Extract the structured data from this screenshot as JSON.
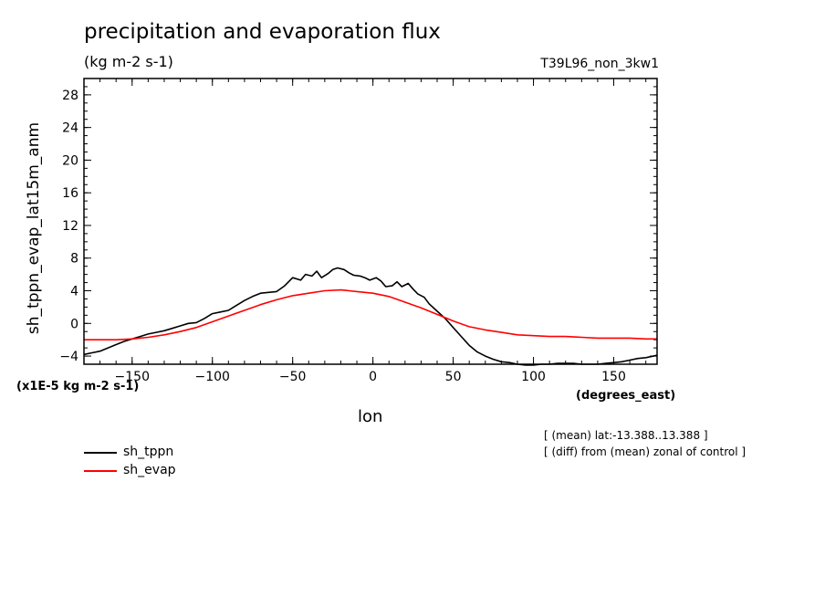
{
  "chart_data": {
    "type": "line",
    "title": "precipitation and evaporation flux",
    "units": "(kg m-2 s-1)",
    "run_label": "T39L96_non_3kw1",
    "xlabel": "lon",
    "xunits": "(degrees_east)",
    "ylabel": "sh_tppn_evap_lat15m_anm",
    "yunits": "(x1E-5 kg m-2 s-1)",
    "xlim": [
      -180,
      177
    ],
    "ylim": [
      -5,
      30
    ],
    "xticks": [
      -150,
      -100,
      -50,
      0,
      50,
      100,
      150
    ],
    "yticks": [
      -4,
      0,
      4,
      8,
      12,
      16,
      20,
      24,
      28
    ],
    "grid": false,
    "legend_position": "bottom-left",
    "notes": [
      "[ (mean) lat:-13.388..13.388 ]",
      "[ (diff) from (mean) zonal of control ]"
    ],
    "series": [
      {
        "name": "sh_tppn",
        "color": "#000000",
        "x": [
          -180,
          -175,
          -170,
          -165,
          -160,
          -155,
          -150,
          -145,
          -140,
          -135,
          -130,
          -125,
          -120,
          -115,
          -110,
          -105,
          -100,
          -95,
          -90,
          -85,
          -80,
          -75,
          -70,
          -65,
          -60,
          -55,
          -50,
          -45,
          -42,
          -38,
          -35,
          -32,
          -28,
          -25,
          -22,
          -18,
          -15,
          -12,
          -8,
          -5,
          -2,
          2,
          5,
          8,
          12,
          15,
          18,
          22,
          25,
          28,
          32,
          35,
          40,
          45,
          50,
          55,
          60,
          65,
          70,
          75,
          80,
          85,
          90,
          95,
          100,
          105,
          110,
          115,
          120,
          125,
          130,
          135,
          140,
          145,
          150,
          155,
          160,
          165,
          170,
          177
        ],
        "values": [
          -3.8,
          -3.6,
          -3.4,
          -3.0,
          -2.6,
          -2.2,
          -1.9,
          -1.6,
          -1.3,
          -1.1,
          -0.9,
          -0.6,
          -0.3,
          0.0,
          0.1,
          0.6,
          1.2,
          1.4,
          1.6,
          2.2,
          2.8,
          3.3,
          3.7,
          3.8,
          3.9,
          4.6,
          5.6,
          5.3,
          6.0,
          5.8,
          6.4,
          5.6,
          6.1,
          6.6,
          6.8,
          6.6,
          6.2,
          5.9,
          5.8,
          5.6,
          5.3,
          5.6,
          5.2,
          4.5,
          4.6,
          5.1,
          4.5,
          4.9,
          4.2,
          3.6,
          3.2,
          2.4,
          1.5,
          0.6,
          -0.5,
          -1.6,
          -2.7,
          -3.5,
          -4.0,
          -4.4,
          -4.7,
          -4.8,
          -5.0,
          -5.1,
          -5.1,
          -5.0,
          -5.0,
          -4.9,
          -4.9,
          -4.9,
          -5.0,
          -5.0,
          -5.0,
          -4.9,
          -4.8,
          -4.7,
          -4.5,
          -4.3,
          -4.2,
          -3.9
        ]
      },
      {
        "name": "sh_evap",
        "color": "#ff0000",
        "x": [
          -180,
          -170,
          -160,
          -150,
          -140,
          -130,
          -120,
          -110,
          -100,
          -90,
          -80,
          -70,
          -60,
          -50,
          -40,
          -30,
          -20,
          -10,
          0,
          10,
          20,
          30,
          40,
          50,
          60,
          70,
          80,
          90,
          100,
          110,
          120,
          130,
          140,
          150,
          160,
          170,
          177
        ],
        "values": [
          -2.0,
          -2.0,
          -2.0,
          -1.9,
          -1.7,
          -1.4,
          -1.0,
          -0.5,
          0.2,
          0.9,
          1.6,
          2.3,
          2.9,
          3.4,
          3.7,
          4.0,
          4.1,
          3.9,
          3.7,
          3.3,
          2.6,
          1.9,
          1.1,
          0.3,
          -0.4,
          -0.8,
          -1.1,
          -1.4,
          -1.5,
          -1.6,
          -1.6,
          -1.7,
          -1.8,
          -1.8,
          -1.8,
          -1.9,
          -1.9
        ]
      }
    ]
  }
}
